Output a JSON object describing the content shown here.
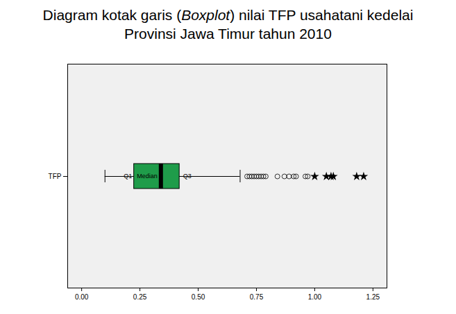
{
  "chart_data": {
    "type": "boxplot",
    "title": "Diagram kotak garis (Boxplot) nilai TFP usahatani kedelai Provinsi Jawa Timur tahun 2010",
    "categories": [
      "TFP"
    ],
    "color": "#1f9c4a",
    "box": {
      "whislo": 0.1,
      "q1": 0.225,
      "median": 0.34,
      "q3": 0.42,
      "whishi": 0.68
    },
    "box_labels": {
      "q1": "Q1",
      "median": "Median",
      "q3": "Q3"
    },
    "outliers": [
      0.71,
      0.72,
      0.73,
      0.74,
      0.75,
      0.76,
      0.77,
      0.78,
      0.79,
      0.84,
      0.87,
      0.89,
      0.91,
      0.92,
      0.96,
      0.97
    ],
    "extremes": [
      1.0,
      1.05,
      1.07,
      1.08,
      1.18,
      1.21
    ],
    "xlim": [
      -0.06,
      1.31
    ],
    "xticks": [
      {
        "value": 0,
        "label": "0.00"
      },
      {
        "value": 0.25,
        "label": "0.25"
      },
      {
        "value": 0.5,
        "label": "0.50"
      },
      {
        "value": 0.75,
        "label": "0.75"
      },
      {
        "value": 1,
        "label": "1.00"
      },
      {
        "value": 1.25,
        "label": "1.25"
      }
    ]
  }
}
